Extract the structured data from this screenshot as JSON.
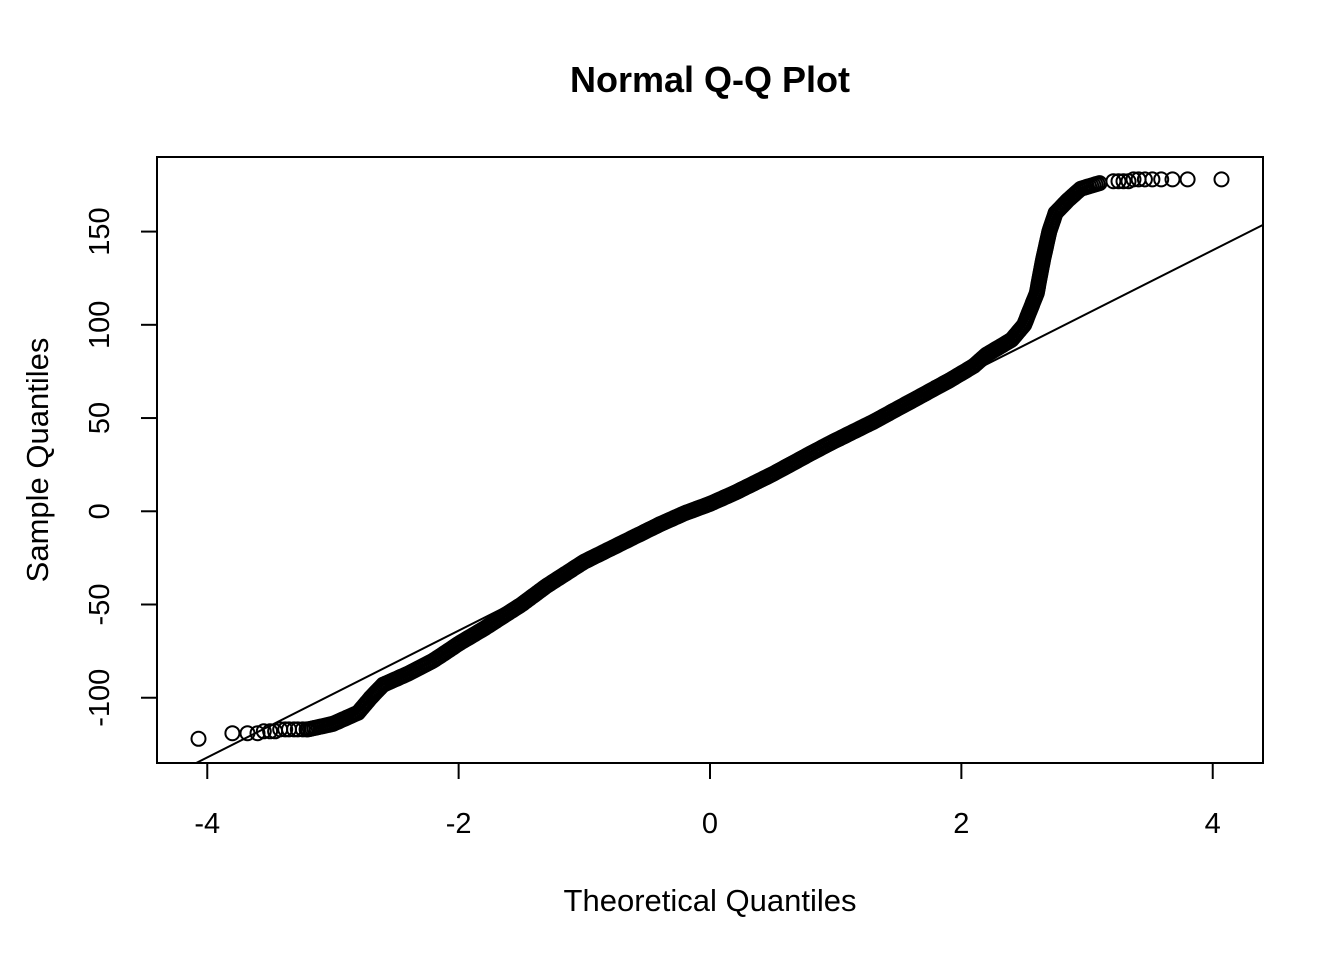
{
  "chart_data": {
    "type": "scatter",
    "title": "Normal Q-Q Plot",
    "xlabel": "Theoretical Quantiles",
    "ylabel": "Sample Quantiles",
    "xlim": [
      -4.4,
      4.4
    ],
    "ylim": [
      -135,
      190
    ],
    "x_ticks": [
      -4,
      -2,
      0,
      2,
      4
    ],
    "x_tick_labels": [
      "-4",
      "-2",
      "0",
      "2",
      "4"
    ],
    "y_ticks": [
      -100,
      -50,
      0,
      50,
      100,
      150
    ],
    "y_tick_labels": [
      "-100",
      "-50",
      "0",
      "50",
      "100",
      "150"
    ],
    "reference_line": {
      "intercept": 4,
      "slope": 34
    },
    "quantile_curve": [
      [
        -3.2,
        -117
      ],
      [
        -3.0,
        -114
      ],
      [
        -2.8,
        -108
      ],
      [
        -2.7,
        -100
      ],
      [
        -2.6,
        -93
      ],
      [
        -2.4,
        -87
      ],
      [
        -2.2,
        -80
      ],
      [
        -2.0,
        -71
      ],
      [
        -1.8,
        -63
      ],
      [
        -1.5,
        -50
      ],
      [
        -1.3,
        -40
      ],
      [
        -1.0,
        -27
      ],
      [
        -0.7,
        -17
      ],
      [
        -0.4,
        -7
      ],
      [
        -0.2,
        -1
      ],
      [
        0.0,
        4
      ],
      [
        0.2,
        10
      ],
      [
        0.5,
        20
      ],
      [
        0.8,
        31
      ],
      [
        1.0,
        38
      ],
      [
        1.3,
        48
      ],
      [
        1.6,
        59
      ],
      [
        1.9,
        70
      ],
      [
        2.1,
        78
      ],
      [
        2.2,
        84
      ],
      [
        2.4,
        92
      ],
      [
        2.5,
        100
      ],
      [
        2.6,
        117
      ],
      [
        2.65,
        135
      ],
      [
        2.7,
        150
      ],
      [
        2.75,
        160
      ],
      [
        2.85,
        167
      ],
      [
        2.95,
        173
      ],
      [
        3.1,
        176
      ]
    ],
    "tail_points": {
      "x": [
        -4.07,
        -3.8,
        -3.68,
        -3.6,
        -3.55,
        -3.5,
        -3.46,
        -3.42,
        -3.38,
        -3.35,
        -3.31,
        -3.28,
        -3.24,
        -3.21,
        3.21,
        3.25,
        3.29,
        3.33,
        3.37,
        3.41,
        3.46,
        3.52,
        3.59,
        3.68,
        3.8,
        4.07
      ],
      "y": [
        -122,
        -119,
        -119,
        -119,
        -118,
        -118,
        -118,
        -117,
        -117,
        -117,
        -117,
        -117,
        -117,
        -117,
        177,
        177,
        177,
        177,
        178,
        178,
        178,
        178,
        178,
        178,
        178,
        178
      ]
    },
    "grid": false,
    "legend": "none"
  }
}
